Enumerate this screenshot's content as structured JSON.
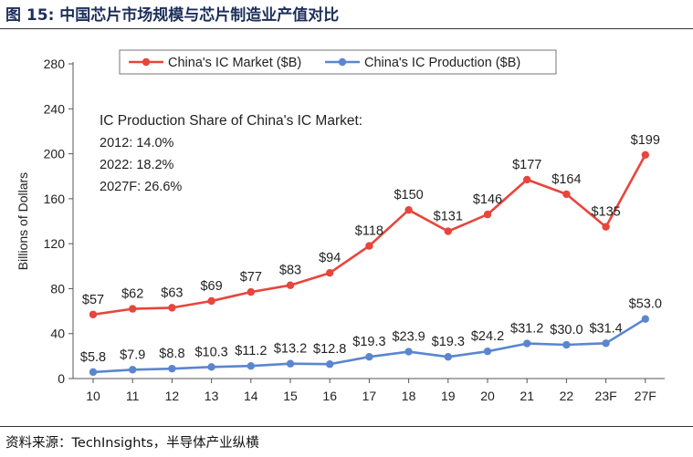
{
  "figure": {
    "label": "图 15:",
    "title": "中国芯片市场规模与芯片制造业产值对比"
  },
  "source": "资料来源：TechInsights，半导体产业纵横",
  "chart_data": {
    "type": "line",
    "categories": [
      "10",
      "11",
      "12",
      "13",
      "14",
      "15",
      "16",
      "17",
      "18",
      "19",
      "20",
      "21",
      "22",
      "23F",
      "27F"
    ],
    "ylabel": "Billions of Dollars",
    "xlabel": "",
    "ylim": [
      0,
      280
    ],
    "yticks": [
      0,
      40,
      80,
      120,
      160,
      200,
      240,
      280
    ],
    "grid": false,
    "legend_position": "top",
    "series": [
      {
        "name": "China's IC Market ($B)",
        "color": "#e8453c",
        "values": [
          57,
          62,
          63,
          69,
          77,
          83,
          94,
          118,
          150,
          131,
          146,
          177,
          164,
          135,
          199
        ],
        "labels": [
          "$57",
          "$62",
          "$63",
          "$69",
          "$77",
          "$83",
          "$94",
          "$118",
          "$150",
          "$131",
          "$146",
          "$177",
          "$164",
          "$135",
          "$199"
        ]
      },
      {
        "name": "China's IC Production ($B)",
        "color": "#5b86cf",
        "values": [
          5.8,
          7.9,
          8.8,
          10.3,
          11.2,
          13.2,
          12.8,
          19.3,
          23.9,
          19.3,
          24.2,
          31.2,
          30.0,
          31.4,
          53.0
        ],
        "labels": [
          "$5.8",
          "$7.9",
          "$8.8",
          "$10.3",
          "$11.2",
          "$13.2",
          "$12.8",
          "$19.3",
          "$23.9",
          "$19.3",
          "$24.2",
          "$31.2",
          "$30.0",
          "$31.4",
          "$53.0"
        ]
      }
    ],
    "annotation": {
      "heading": "IC Production Share of China's IC Market:",
      "lines": [
        "2012: 14.0%",
        "2022: 18.2%",
        "2027F: 26.6%"
      ]
    }
  }
}
